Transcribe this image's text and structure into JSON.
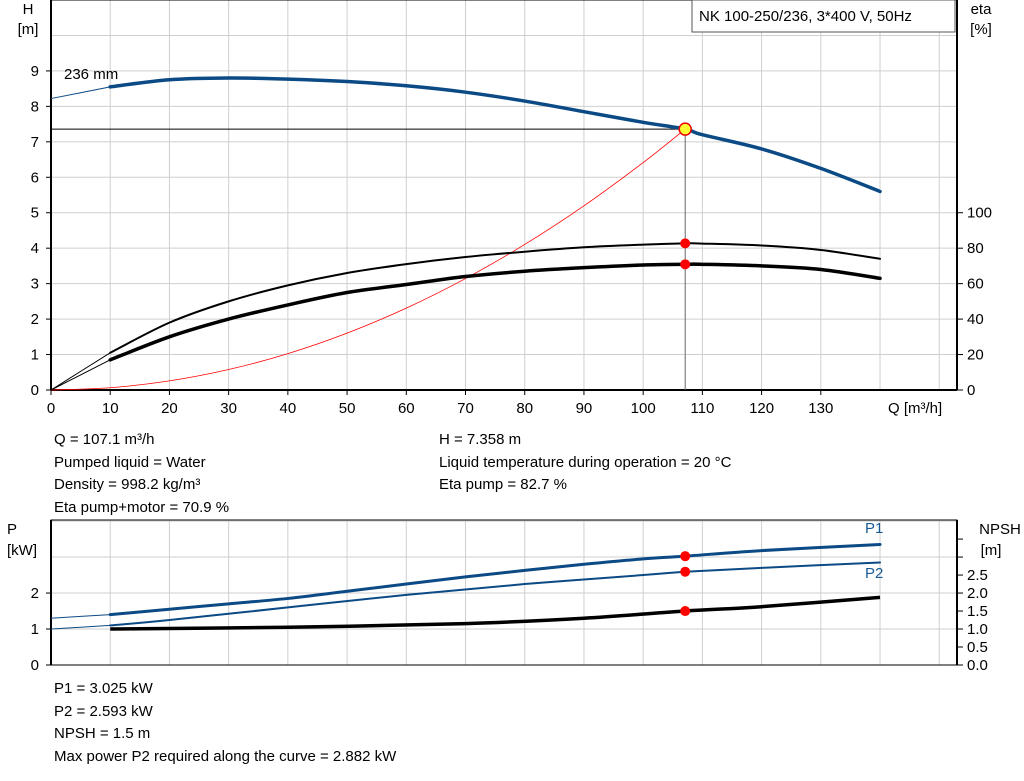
{
  "chart_data": [
    {
      "type": "line",
      "title": "NK 100-250/236, 3*400 V, 50Hz",
      "xlabel": "Q [m³/h]",
      "ylabel": "H\n[m]",
      "y2label": "eta\n[%]",
      "xlim": [
        0,
        153
      ],
      "ylim": [
        0,
        11
      ],
      "y2lim": [
        0,
        220
      ],
      "xticks": [
        0,
        10,
        20,
        30,
        40,
        50,
        60,
        70,
        80,
        90,
        100,
        110,
        120,
        130
      ],
      "yticks": [
        0,
        1,
        2,
        3,
        4,
        5,
        6,
        7,
        8,
        9
      ],
      "y2ticks": [
        0,
        20,
        40,
        60,
        80,
        100
      ],
      "grid": true,
      "curve_label": "236 mm",
      "series": [
        {
          "key": "H",
          "axis": "left",
          "color": "#0b4a85",
          "x": [
            0,
            10,
            20,
            30,
            40,
            50,
            60,
            70,
            80,
            90,
            100,
            107.1,
            110,
            120,
            130,
            140
          ],
          "y": [
            8.22,
            8.55,
            8.75,
            8.8,
            8.77,
            8.7,
            8.58,
            8.4,
            8.15,
            7.85,
            7.55,
            7.358,
            7.2,
            6.8,
            6.25,
            5.6
          ]
        },
        {
          "key": "eta_pump",
          "axis": "right",
          "color": "#000000",
          "x": [
            0,
            10,
            20,
            30,
            40,
            50,
            60,
            70,
            80,
            90,
            100,
            107.1,
            110,
            120,
            130,
            140
          ],
          "y": [
            0,
            21,
            38,
            50,
            59,
            66,
            71,
            75,
            78,
            80.5,
            82,
            82.7,
            82.6,
            81.5,
            79,
            74
          ]
        },
        {
          "key": "eta_pump_motor",
          "axis": "right",
          "color": "#000000",
          "x": [
            0,
            10,
            20,
            30,
            40,
            50,
            60,
            70,
            80,
            90,
            100,
            107.1,
            110,
            120,
            130,
            140
          ],
          "y": [
            0,
            17,
            30,
            40,
            48,
            55,
            59.5,
            64,
            67,
            69,
            70.5,
            70.9,
            70.9,
            70,
            68,
            63
          ]
        },
        {
          "key": "system",
          "axis": "left",
          "color": "#ff0000",
          "x": [
            0,
            10,
            20,
            30,
            40,
            50,
            60,
            70,
            80,
            90,
            100,
            107.1
          ],
          "y": [
            0,
            0.064,
            0.257,
            0.577,
            1.026,
            1.604,
            2.309,
            3.143,
            4.105,
            5.195,
            6.414,
            7.358
          ]
        }
      ],
      "duty_point": {
        "Q": 107.1,
        "H": 7.358,
        "eta_pump": 82.7,
        "eta_pump_motor": 70.9
      }
    },
    {
      "type": "line",
      "ylabel": "P\n[kW]",
      "y2label": "NPSH\n[m]",
      "xlim": [
        0,
        153
      ],
      "ylim": [
        0,
        4.03
      ],
      "y2lim": [
        0,
        4.03
      ],
      "yticks": [
        0,
        1,
        2
      ],
      "y2ticks": [
        "0.0",
        "0.5",
        "1.0",
        "1.5",
        "2.0",
        "2.5"
      ],
      "grid": true,
      "series": [
        {
          "name": "P1",
          "axis": "left",
          "color": "#0b4a85",
          "x": [
            0,
            10,
            20,
            30,
            40,
            50,
            60,
            70,
            80,
            90,
            100,
            107.1,
            120,
            140
          ],
          "y": [
            1.3,
            1.4,
            1.55,
            1.7,
            1.85,
            2.05,
            2.25,
            2.45,
            2.63,
            2.8,
            2.95,
            3.025,
            3.18,
            3.35
          ]
        },
        {
          "name": "P2",
          "axis": "left",
          "color": "#0b4a85",
          "x": [
            0,
            10,
            20,
            40,
            60,
            80,
            100,
            107.1,
            120,
            140
          ],
          "y": [
            1.0,
            1.1,
            1.25,
            1.6,
            1.95,
            2.25,
            2.5,
            2.593,
            2.7,
            2.85
          ]
        },
        {
          "key": "NPSH",
          "axis": "right",
          "color": "#000000",
          "x": [
            10,
            40,
            70,
            90,
            107.1,
            120,
            140
          ],
          "y": [
            1.0,
            1.05,
            1.15,
            1.3,
            1.5,
            1.62,
            1.88
          ]
        }
      ],
      "duty_point": {
        "Q": 107.1,
        "P1": 3.025,
        "P2": 2.593,
        "NPSH": 1.5
      }
    }
  ],
  "info1": {
    "left": [
      "Q = 107.1 m³/h",
      "Pumped liquid = Water",
      "Density = 998.2 kg/m³",
      "Eta pump+motor = 70.9 %"
    ],
    "right": [
      "H = 7.358 m",
      "Liquid temperature during operation = 20 °C",
      "Eta pump = 82.7 %"
    ]
  },
  "info2": [
    "P1 = 3.025 kW",
    "P2 = 2.593 kW",
    "NPSH = 1.5 m",
    "Max power P2 required along the curve = 2.882 kW"
  ]
}
